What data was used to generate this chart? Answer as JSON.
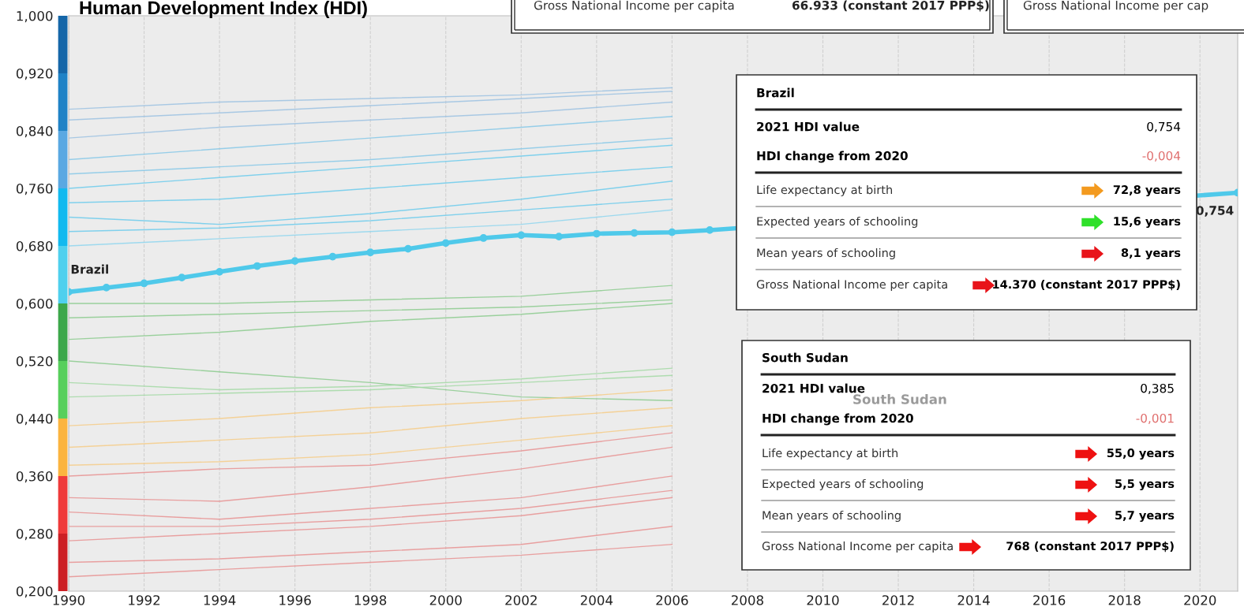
{
  "chart_data": {
    "type": "line",
    "title": "Human Development Index (HDI)",
    "xlim": [
      1990,
      2021
    ],
    "xticks": [
      1990,
      1992,
      1994,
      1996,
      1998,
      2000,
      2002,
      2004,
      2006,
      2008,
      2010,
      2012,
      2014,
      2016,
      2018,
      2020
    ],
    "ylim": [
      0.2,
      1.0
    ],
    "yticks": [
      {
        "value": 0.2,
        "label": "0,200"
      },
      {
        "value": 0.28,
        "label": "0,280"
      },
      {
        "value": 0.36,
        "label": "0,360"
      },
      {
        "value": 0.44,
        "label": "0,440"
      },
      {
        "value": 0.52,
        "label": "0,520"
      },
      {
        "value": 0.6,
        "label": "0,600"
      },
      {
        "value": 0.68,
        "label": "0,680"
      },
      {
        "value": 0.76,
        "label": "0,760"
      },
      {
        "value": 0.84,
        "label": "0,840"
      },
      {
        "value": 0.92,
        "label": "0,920"
      },
      {
        "value": 1.0,
        "label": "1,000"
      }
    ],
    "grid": "x",
    "legend": false,
    "series": [
      {
        "color": "#9cc2e2",
        "x": [
          1990,
          1994,
          1998,
          2002,
          2006
        ],
        "values": [
          0.87,
          0.88,
          0.885,
          0.89,
          0.9
        ]
      },
      {
        "color": "#9cc2e2",
        "x": [
          1990,
          1994,
          1998,
          2002,
          2006
        ],
        "values": [
          0.855,
          0.865,
          0.875,
          0.885,
          0.895
        ]
      },
      {
        "color": "#9cc2e2",
        "x": [
          1990,
          1994,
          1998,
          2002,
          2006
        ],
        "values": [
          0.83,
          0.845,
          0.855,
          0.865,
          0.88
        ]
      },
      {
        "color": "#86c8e8",
        "x": [
          1990,
          1994,
          1998,
          2002,
          2006
        ],
        "values": [
          0.8,
          0.815,
          0.83,
          0.845,
          0.86
        ]
      },
      {
        "color": "#86c8e8",
        "x": [
          1990,
          1994,
          1998,
          2002,
          2006
        ],
        "values": [
          0.78,
          0.79,
          0.8,
          0.815,
          0.83
        ]
      },
      {
        "color": "#6ccbec",
        "x": [
          1990,
          1994,
          1998,
          2002,
          2006
        ],
        "values": [
          0.76,
          0.775,
          0.79,
          0.805,
          0.82
        ]
      },
      {
        "color": "#6ccbec",
        "x": [
          1990,
          1994,
          1998,
          2002,
          2006
        ],
        "values": [
          0.74,
          0.745,
          0.76,
          0.775,
          0.79
        ]
      },
      {
        "color": "#6ccbec",
        "x": [
          1990,
          1994,
          1998,
          2002,
          2006
        ],
        "values": [
          0.72,
          0.71,
          0.725,
          0.745,
          0.77
        ]
      },
      {
        "color": "#6ccbec",
        "x": [
          1990,
          1994,
          1998,
          2002,
          2006
        ],
        "values": [
          0.7,
          0.705,
          0.715,
          0.73,
          0.745
        ]
      },
      {
        "color": "#8fd6ef",
        "x": [
          1990,
          1994,
          1998,
          2002,
          2006
        ],
        "values": [
          0.68,
          0.69,
          0.7,
          0.71,
          0.73
        ]
      },
      {
        "color": "#8ccb8e",
        "x": [
          1990,
          1994,
          1998,
          2002,
          2006
        ],
        "values": [
          0.6,
          0.6,
          0.605,
          0.61,
          0.625
        ]
      },
      {
        "color": "#8ccb8e",
        "x": [
          1990,
          1994,
          1998,
          2002,
          2006
        ],
        "values": [
          0.58,
          0.585,
          0.59,
          0.595,
          0.605
        ]
      },
      {
        "color": "#8ccb8e",
        "x": [
          1990,
          1994,
          1998,
          2002,
          2006
        ],
        "values": [
          0.55,
          0.56,
          0.575,
          0.585,
          0.6
        ]
      },
      {
        "color": "#8ccb8e",
        "x": [
          1990,
          1994,
          1998,
          2002,
          2006
        ],
        "values": [
          0.52,
          0.505,
          0.49,
          0.47,
          0.465
        ]
      },
      {
        "color": "#a3d9a5",
        "x": [
          1990,
          1994,
          1998,
          2002,
          2006
        ],
        "values": [
          0.49,
          0.48,
          0.485,
          0.495,
          0.51
        ]
      },
      {
        "color": "#a3d9a5",
        "x": [
          1990,
          1994,
          1998,
          2002,
          2006
        ],
        "values": [
          0.47,
          0.475,
          0.48,
          0.49,
          0.5
        ]
      },
      {
        "color": "#f6cc88",
        "x": [
          1990,
          1994,
          1998,
          2002,
          2006
        ],
        "values": [
          0.43,
          0.44,
          0.455,
          0.465,
          0.48
        ]
      },
      {
        "color": "#f6cc88",
        "x": [
          1990,
          1994,
          1998,
          2002,
          2006
        ],
        "values": [
          0.4,
          0.41,
          0.42,
          0.44,
          0.455
        ]
      },
      {
        "color": "#f6cc88",
        "x": [
          1990,
          1994,
          1998,
          2002,
          2006
        ],
        "values": [
          0.375,
          0.38,
          0.39,
          0.41,
          0.43
        ]
      },
      {
        "color": "#e79292",
        "x": [
          1990,
          1994,
          1998,
          2002,
          2006
        ],
        "values": [
          0.36,
          0.37,
          0.375,
          0.395,
          0.42
        ]
      },
      {
        "color": "#e79292",
        "x": [
          1990,
          1994,
          1998,
          2002,
          2006
        ],
        "values": [
          0.33,
          0.325,
          0.345,
          0.37,
          0.4
        ]
      },
      {
        "color": "#e79292",
        "x": [
          1990,
          1994,
          1998,
          2002,
          2006
        ],
        "values": [
          0.31,
          0.3,
          0.315,
          0.33,
          0.36
        ]
      },
      {
        "color": "#e79292",
        "x": [
          1990,
          1994,
          1998,
          2002,
          2006
        ],
        "values": [
          0.29,
          0.29,
          0.3,
          0.315,
          0.34
        ]
      },
      {
        "color": "#e79292",
        "x": [
          1990,
          1994,
          1998,
          2002,
          2006
        ],
        "values": [
          0.27,
          0.28,
          0.29,
          0.305,
          0.33
        ]
      },
      {
        "color": "#e79292",
        "x": [
          1990,
          1994,
          1998,
          2002,
          2006
        ],
        "values": [
          0.24,
          0.245,
          0.255,
          0.265,
          0.29
        ]
      },
      {
        "color": "#e79292",
        "x": [
          1990,
          1994,
          1998,
          2002,
          2006
        ],
        "values": [
          0.22,
          0.23,
          0.24,
          0.25,
          0.265
        ]
      },
      {
        "name": "Brazil",
        "color": "#4fc9ea",
        "marker": "circle",
        "x": [
          1990,
          1991,
          1992,
          1993,
          1994,
          1995,
          1996,
          1997,
          1998,
          1999,
          2000,
          2001,
          2002,
          2003,
          2004,
          2005,
          2006,
          2007,
          2021
        ],
        "values": [
          0.616,
          0.622,
          0.628,
          0.636,
          0.644,
          0.652,
          0.659,
          0.665,
          0.671,
          0.676,
          0.684,
          0.691,
          0.695,
          0.693,
          0.697,
          0.698,
          0.699,
          0.702,
          0.754
        ],
        "value_labels": [
          null,
          null,
          null,
          null,
          null,
          null,
          null,
          null,
          null,
          null,
          null,
          null,
          null,
          null,
          null,
          null,
          null,
          null,
          "0,754"
        ]
      }
    ],
    "annotations": [
      "Gross National Income per capita",
      "66.933 (constant 2017 PPP$)",
      "Gross National Income per cap",
      "Brazil",
      "2021 HDI value",
      "0,754",
      "HDI change from 2020",
      "-0,004",
      "Life expectancy at birth",
      "72,8 years",
      "Expected years of schooling",
      "15,6 years",
      "Mean years of schooling",
      "8,1 years",
      "Gross National Income per capita",
      "14.370 (constant 2017 PPP$)",
      "South Sudan",
      "2021 HDI value",
      "0,385",
      "HDI change from 2020",
      "-0,001",
      "Life expectancy at birth",
      "55,0 years",
      "Expected years of schooling",
      "5,5 years",
      "Mean years of schooling",
      "5,7 years",
      "Gross National Income per capita",
      "768 (constant 2017 PPP$)",
      "South Sudan"
    ]
  }
}
